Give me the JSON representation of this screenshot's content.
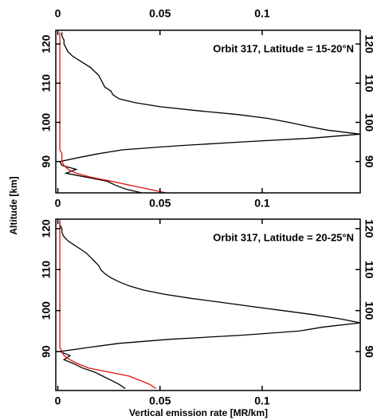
{
  "chart_data": [
    {
      "type": "line",
      "annotation": "Orbit 317, Latitude = 15-20°N",
      "ylabel": "Altitude [km]",
      "y": [
        123,
        122,
        121,
        120,
        119,
        118,
        117,
        116,
        115,
        114,
        113,
        112,
        111,
        110,
        109,
        108,
        107,
        106,
        105,
        104,
        103,
        102,
        101,
        100,
        99,
        98,
        97,
        96,
        95,
        94,
        93,
        92,
        91,
        90,
        89,
        88,
        87,
        86,
        85,
        84,
        83,
        82
      ],
      "series": [
        {
          "color": "#000000",
          "values": [
            0.002,
            0.002,
            0.003,
            0.003,
            0.004,
            0.005,
            0.007,
            0.01,
            0.013,
            0.016,
            0.018,
            0.02,
            0.021,
            0.022,
            0.023,
            0.026,
            0.027,
            0.03,
            0.038,
            0.05,
            0.068,
            0.088,
            0.103,
            0.113,
            0.122,
            0.132,
            0.148,
            0.125,
            0.09,
            0.058,
            0.032,
            0.02,
            0.01,
            0.001,
            0.002,
            0.009,
            0.004,
            0.014,
            0.024,
            0.028,
            0.033,
            0.041
          ]
        },
        {
          "color": "#e01010",
          "values": [
            0.001,
            0.001,
            0.001,
            0.001,
            0.001,
            0.001,
            0.001,
            0.001,
            0.001,
            0.001,
            0.001,
            0.001,
            0.001,
            0.001,
            0.001,
            0.001,
            0.001,
            0.001,
            0.001,
            0.001,
            0.001,
            0.001,
            0.001,
            0.001,
            0.001,
            0.001,
            0.001,
            0.001,
            0.001,
            0.001,
            0.001,
            0.002,
            0.002,
            0.002,
            0.003,
            0.005,
            0.009,
            0.016,
            0.026,
            0.035,
            0.044,
            0.053
          ]
        }
      ],
      "xlim": [
        -0.001,
        0.148
      ],
      "xticks": [
        0,
        0.05,
        0.1
      ],
      "ylim": [
        82,
        123.5
      ],
      "yticks": [
        90,
        100,
        110,
        120
      ]
    },
    {
      "type": "line",
      "annotation": "Orbit 317, Latitude = 20-25°N",
      "xlabel": "Vertical emission rate [MR/km]",
      "y": [
        122,
        121,
        120,
        119,
        118,
        117,
        116,
        115,
        114,
        113,
        112,
        111,
        110,
        109,
        108,
        107,
        106,
        105,
        104,
        103,
        102,
        101,
        100,
        99,
        98,
        97,
        96,
        95,
        94,
        93,
        92,
        91,
        90,
        89,
        88,
        87,
        86,
        85,
        84,
        83,
        82,
        81
      ],
      "series": [
        {
          "color": "#000000",
          "values": [
            0.001,
            0.001,
            0.002,
            0.002,
            0.003,
            0.005,
            0.008,
            0.011,
            0.014,
            0.016,
            0.018,
            0.02,
            0.021,
            0.023,
            0.026,
            0.03,
            0.035,
            0.042,
            0.052,
            0.065,
            0.08,
            0.095,
            0.11,
            0.125,
            0.138,
            0.148,
            0.13,
            0.118,
            0.09,
            0.055,
            0.03,
            0.015,
            0.001,
            0.006,
            0.003,
            0.008,
            0.012,
            0.018,
            0.022,
            0.026,
            0.03,
            0.033
          ]
        },
        {
          "color": "#e01010",
          "values": [
            0.001,
            0.001,
            0.001,
            0.001,
            0.001,
            0.001,
            0.001,
            0.001,
            0.001,
            0.001,
            0.001,
            0.001,
            0.001,
            0.001,
            0.001,
            0.001,
            0.001,
            0.001,
            0.001,
            0.001,
            0.001,
            0.001,
            0.001,
            0.001,
            0.001,
            0.001,
            0.001,
            0.001,
            0.001,
            0.001,
            0.001,
            0.001,
            0.002,
            0.003,
            0.006,
            0.01,
            0.015,
            0.025,
            0.035,
            0.04,
            0.045,
            0.048
          ]
        }
      ],
      "xlim": [
        -0.001,
        0.148
      ],
      "xticks": [
        0,
        0.05,
        0.1
      ],
      "ylim": [
        80.5,
        122.3
      ],
      "yticks": [
        90,
        100,
        110,
        120
      ]
    }
  ]
}
